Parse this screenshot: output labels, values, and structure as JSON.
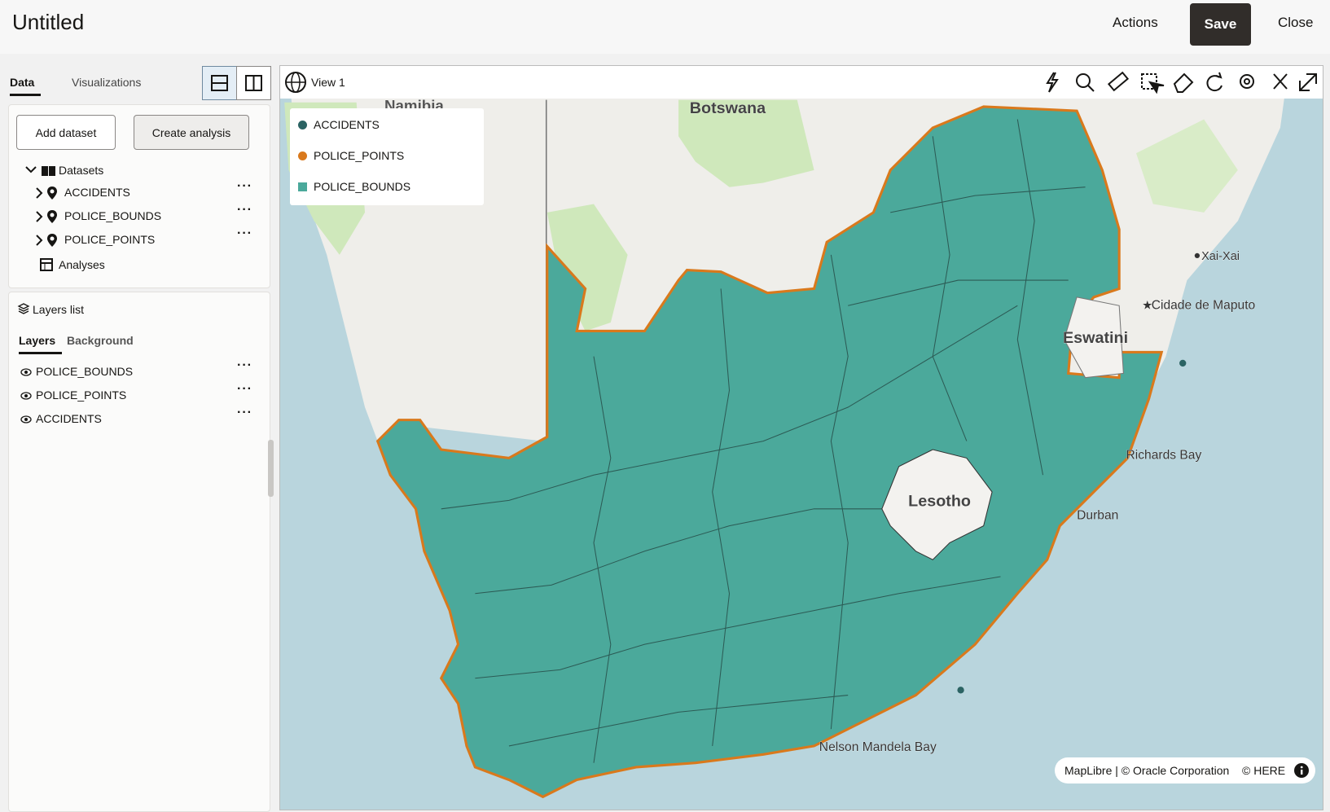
{
  "header": {
    "title": "Untitled",
    "actions": [
      "Actions",
      "Save",
      "Close"
    ]
  },
  "sidebar": {
    "tabs": [
      "Data",
      "Visualizations"
    ],
    "buttons": [
      "Add dataset",
      "Create analysis"
    ],
    "datasets": {
      "label": "Datasets",
      "items": [
        "ACCIDENTS",
        "POLICE_BOUNDS",
        "POLICE_POINTS"
      ],
      "analyses": "Analyses"
    },
    "layers": {
      "title": "Layers list",
      "tabs": [
        "Layers",
        "Background"
      ],
      "items": [
        "POLICE_BOUNDS",
        "POLICE_POINTS",
        "ACCIDENTS"
      ]
    }
  },
  "map": {
    "title": "View 1",
    "legend": [
      {
        "label": "ACCIDENTS",
        "color": "#2b6363",
        "shape": "circle"
      },
      {
        "label": "POLICE_POINTS",
        "color": "#d9791c",
        "shape": "circle"
      },
      {
        "label": "POLICE_BOUNDS",
        "color": "#4ba99b",
        "shape": "square"
      }
    ],
    "places": [
      "Namibia",
      "Botswana",
      "Eswatini",
      "Lesotho",
      "Xai-Xai",
      "Cidade de Maputo",
      "Richards Bay",
      "Durban",
      "Nelson Mandela Bay"
    ],
    "attribution": [
      "MapLibre | © Oracle Corporation",
      "© HERE"
    ]
  }
}
